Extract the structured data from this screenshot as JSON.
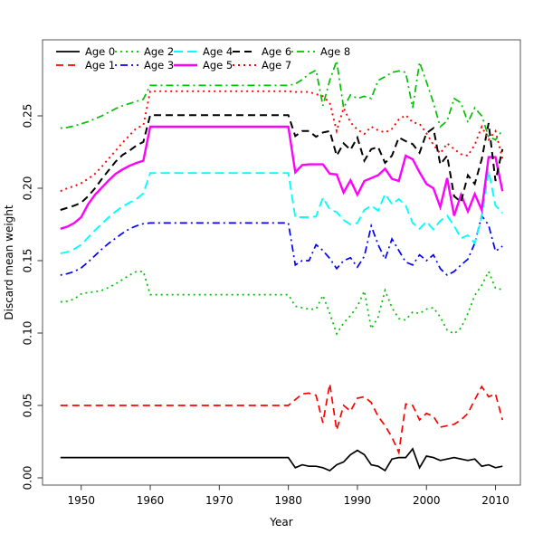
{
  "figure": {
    "background": "#ffffff",
    "box_color": "#555555",
    "tick_color": "#333333"
  },
  "chart_data": {
    "type": "line",
    "title": "",
    "xlabel": "Year",
    "ylabel": "Discard mean weight",
    "x_ticks": [
      1950,
      1960,
      1970,
      1980,
      1990,
      2000,
      2010
    ],
    "y_ticks": [
      "0.00",
      "0.05",
      "0.10",
      "0.15",
      "0.20",
      "0.25"
    ],
    "y_tick_values": [
      0.0,
      0.05,
      0.1,
      0.15,
      0.2,
      0.25
    ],
    "xlim": [
      1944.4,
      2013.6
    ],
    "ylim": [
      -0.005,
      0.3025
    ],
    "grid": false,
    "legend_position": "top-left, two rows, five columns, no box",
    "x": [
      1947,
      1948,
      1949,
      1950,
      1951,
      1952,
      1953,
      1954,
      1955,
      1956,
      1957,
      1958,
      1959,
      1960,
      1961,
      1962,
      1963,
      1964,
      1965,
      1966,
      1967,
      1968,
      1969,
      1970,
      1971,
      1972,
      1973,
      1974,
      1975,
      1976,
      1977,
      1978,
      1979,
      1980,
      1981,
      1982,
      1983,
      1984,
      1985,
      1986,
      1987,
      1988,
      1989,
      1990,
      1991,
      1992,
      1993,
      1994,
      1995,
      1996,
      1997,
      1998,
      1999,
      2000,
      2001,
      2002,
      2003,
      2004,
      2005,
      2006,
      2007,
      2008,
      2009,
      2010,
      2011
    ],
    "series": [
      {
        "name": "Age 0",
        "color": "#000000",
        "style": "solid",
        "width": 1.7,
        "values": [
          0.014,
          0.014,
          0.014,
          0.014,
          0.014,
          0.014,
          0.014,
          0.014,
          0.014,
          0.014,
          0.014,
          0.014,
          0.014,
          0.014,
          0.014,
          0.014,
          0.014,
          0.014,
          0.014,
          0.014,
          0.014,
          0.014,
          0.014,
          0.014,
          0.014,
          0.014,
          0.014,
          0.014,
          0.014,
          0.014,
          0.014,
          0.014,
          0.014,
          0.014,
          0.007,
          0.009,
          0.008,
          0.008,
          0.007,
          0.005,
          0.009,
          0.011,
          0.016,
          0.019,
          0.016,
          0.009,
          0.008,
          0.005,
          0.013,
          0.014,
          0.014,
          0.02,
          0.007,
          0.015,
          0.014,
          0.012,
          0.013,
          0.014,
          0.013,
          0.012,
          0.013,
          0.008,
          0.009,
          0.007,
          0.008
        ]
      },
      {
        "name": "Age 1",
        "color": "#FF0000",
        "style": "dashed",
        "width": 1.7,
        "values": [
          0.05,
          0.05,
          0.05,
          0.05,
          0.05,
          0.05,
          0.05,
          0.05,
          0.05,
          0.05,
          0.05,
          0.05,
          0.05,
          0.05,
          0.05,
          0.05,
          0.05,
          0.05,
          0.05,
          0.05,
          0.05,
          0.05,
          0.05,
          0.05,
          0.05,
          0.05,
          0.05,
          0.05,
          0.05,
          0.05,
          0.05,
          0.05,
          0.05,
          0.05,
          0.054,
          0.058,
          0.0585,
          0.057,
          0.038,
          0.065,
          0.033,
          0.05,
          0.046,
          0.055,
          0.056,
          0.052,
          0.0425,
          0.036,
          0.028,
          0.0175,
          0.051,
          0.05,
          0.04,
          0.0445,
          0.0425,
          0.035,
          0.036,
          0.037,
          0.04,
          0.0445,
          0.054,
          0.063,
          0.056,
          0.058,
          0.04
        ]
      },
      {
        "name": "Age 2",
        "color": "#00C000",
        "style": "dotted",
        "width": 1.7,
        "values": [
          0.1215,
          0.122,
          0.1235,
          0.127,
          0.128,
          0.1285,
          0.1295,
          0.1315,
          0.134,
          0.137,
          0.14,
          0.1425,
          0.1425,
          0.1265,
          0.1265,
          0.1265,
          0.1265,
          0.1265,
          0.1265,
          0.1265,
          0.1265,
          0.1265,
          0.1265,
          0.1265,
          0.1265,
          0.1265,
          0.1265,
          0.1265,
          0.1265,
          0.1265,
          0.1265,
          0.1265,
          0.1265,
          0.1265,
          0.1185,
          0.1175,
          0.1165,
          0.1165,
          0.126,
          0.1135,
          0.0995,
          0.107,
          0.112,
          0.1185,
          0.129,
          0.103,
          0.111,
          0.1295,
          0.1175,
          0.11,
          0.109,
          0.1145,
          0.1135,
          0.1165,
          0.1175,
          0.111,
          0.102,
          0.0995,
          0.1035,
          0.1135,
          0.126,
          0.133,
          0.1425,
          0.131,
          0.13
        ]
      },
      {
        "name": "Age 3",
        "color": "#0000FF",
        "style": "dashdot",
        "width": 1.7,
        "values": [
          0.14,
          0.141,
          0.1425,
          0.145,
          0.149,
          0.1535,
          0.158,
          0.162,
          0.1655,
          0.169,
          0.172,
          0.174,
          0.1755,
          0.176,
          0.176,
          0.176,
          0.176,
          0.176,
          0.176,
          0.176,
          0.176,
          0.176,
          0.176,
          0.176,
          0.176,
          0.176,
          0.176,
          0.176,
          0.176,
          0.176,
          0.176,
          0.176,
          0.176,
          0.176,
          0.147,
          0.15,
          0.15,
          0.161,
          0.157,
          0.1515,
          0.1445,
          0.15,
          0.152,
          0.1455,
          0.153,
          0.174,
          0.161,
          0.151,
          0.165,
          0.157,
          0.149,
          0.147,
          0.154,
          0.15,
          0.154,
          0.1445,
          0.14,
          0.1425,
          0.147,
          0.151,
          0.162,
          0.181,
          0.1745,
          0.1565,
          0.16
        ]
      },
      {
        "name": "Age 4",
        "color": "#00FFFF",
        "style": "longdash",
        "width": 1.9,
        "values": [
          0.155,
          0.156,
          0.158,
          0.161,
          0.166,
          0.171,
          0.1755,
          0.18,
          0.184,
          0.1875,
          0.19,
          0.1925,
          0.1965,
          0.2105,
          0.2105,
          0.2105,
          0.2105,
          0.2105,
          0.2105,
          0.2105,
          0.2105,
          0.2105,
          0.2105,
          0.2105,
          0.2105,
          0.2105,
          0.2105,
          0.2105,
          0.2105,
          0.2105,
          0.2105,
          0.2105,
          0.2105,
          0.2105,
          0.18,
          0.18,
          0.18,
          0.1805,
          0.1935,
          0.1855,
          0.1835,
          0.178,
          0.175,
          0.176,
          0.185,
          0.188,
          0.1845,
          0.196,
          0.189,
          0.1925,
          0.188,
          0.176,
          0.172,
          0.177,
          0.1715,
          0.1775,
          0.181,
          0.174,
          0.1655,
          0.1675,
          0.162,
          0.18,
          0.212,
          0.188,
          0.183
        ]
      },
      {
        "name": "Age 5",
        "color": "#FF00FF",
        "style": "solid",
        "width": 2.4,
        "values": [
          0.172,
          0.1735,
          0.176,
          0.18,
          0.189,
          0.1955,
          0.2005,
          0.2055,
          0.21,
          0.213,
          0.2155,
          0.2175,
          0.219,
          0.2425,
          0.2425,
          0.2425,
          0.2425,
          0.2425,
          0.2425,
          0.2425,
          0.2425,
          0.2425,
          0.2425,
          0.2425,
          0.2425,
          0.2425,
          0.2425,
          0.2425,
          0.2425,
          0.2425,
          0.2425,
          0.2425,
          0.2425,
          0.2425,
          0.211,
          0.216,
          0.2165,
          0.2165,
          0.2165,
          0.21,
          0.2095,
          0.197,
          0.2055,
          0.1955,
          0.205,
          0.207,
          0.209,
          0.2135,
          0.2065,
          0.205,
          0.2225,
          0.22,
          0.211,
          0.203,
          0.2,
          0.187,
          0.207,
          0.181,
          0.1955,
          0.184,
          0.196,
          0.185,
          0.2215,
          0.2215,
          0.198
        ]
      },
      {
        "name": "Age 6",
        "color": "#000000",
        "style": "dashed",
        "width": 2.0,
        "values": [
          0.185,
          0.1865,
          0.188,
          0.19,
          0.1945,
          0.2,
          0.2065,
          0.2125,
          0.2185,
          0.223,
          0.226,
          0.2295,
          0.232,
          0.2505,
          0.2505,
          0.2505,
          0.2505,
          0.2505,
          0.2505,
          0.2505,
          0.2505,
          0.2505,
          0.2505,
          0.2505,
          0.2505,
          0.2505,
          0.2505,
          0.2505,
          0.2505,
          0.2505,
          0.2505,
          0.2505,
          0.2505,
          0.2505,
          0.236,
          0.2395,
          0.2395,
          0.2355,
          0.2385,
          0.2395,
          0.2225,
          0.231,
          0.2265,
          0.235,
          0.219,
          0.227,
          0.2285,
          0.2175,
          0.2225,
          0.235,
          0.2325,
          0.2305,
          0.2245,
          0.238,
          0.2415,
          0.2165,
          0.2225,
          0.1945,
          0.1905,
          0.209,
          0.203,
          0.22,
          0.245,
          0.205,
          0.227
        ]
      },
      {
        "name": "Age 7",
        "color": "#FF0000",
        "style": "dotted",
        "width": 1.9,
        "values": [
          0.198,
          0.2,
          0.2015,
          0.2035,
          0.2065,
          0.21,
          0.215,
          0.2205,
          0.226,
          0.2315,
          0.2365,
          0.2415,
          0.2435,
          0.267,
          0.267,
          0.267,
          0.267,
          0.267,
          0.267,
          0.267,
          0.267,
          0.267,
          0.267,
          0.267,
          0.267,
          0.267,
          0.267,
          0.267,
          0.267,
          0.267,
          0.267,
          0.267,
          0.267,
          0.267,
          0.2665,
          0.2665,
          0.2665,
          0.265,
          0.2635,
          0.259,
          0.2395,
          0.2555,
          0.2455,
          0.2405,
          0.2375,
          0.2425,
          0.24,
          0.2385,
          0.241,
          0.2475,
          0.2505,
          0.2455,
          0.2445,
          0.238,
          0.23,
          0.224,
          0.231,
          0.227,
          0.2235,
          0.2225,
          0.23,
          0.2425,
          0.2335,
          0.2395,
          0.2205
        ]
      },
      {
        "name": "Age 8",
        "color": "#00C000",
        "style": "dashdot",
        "width": 1.7,
        "values": [
          0.2415,
          0.242,
          0.243,
          0.2445,
          0.246,
          0.248,
          0.25,
          0.2525,
          0.255,
          0.257,
          0.2585,
          0.26,
          0.2615,
          0.271,
          0.271,
          0.271,
          0.271,
          0.271,
          0.271,
          0.271,
          0.271,
          0.271,
          0.271,
          0.271,
          0.271,
          0.271,
          0.271,
          0.271,
          0.271,
          0.271,
          0.271,
          0.271,
          0.271,
          0.271,
          0.272,
          0.275,
          0.279,
          0.2815,
          0.257,
          0.2745,
          0.288,
          0.2555,
          0.2645,
          0.262,
          0.2635,
          0.262,
          0.2745,
          0.277,
          0.28,
          0.281,
          0.28,
          0.2555,
          0.287,
          0.2735,
          0.259,
          0.2425,
          0.2465,
          0.262,
          0.259,
          0.2455,
          0.2555,
          0.25,
          0.2355,
          0.2335,
          0.24
        ]
      }
    ]
  },
  "legend": {
    "rows": 2,
    "columns": 5,
    "labels": [
      "Age 0",
      "Age 1",
      "Age 2",
      "Age 3",
      "Age 4",
      "Age 5",
      "Age 6",
      "Age 7",
      "Age 8"
    ]
  }
}
